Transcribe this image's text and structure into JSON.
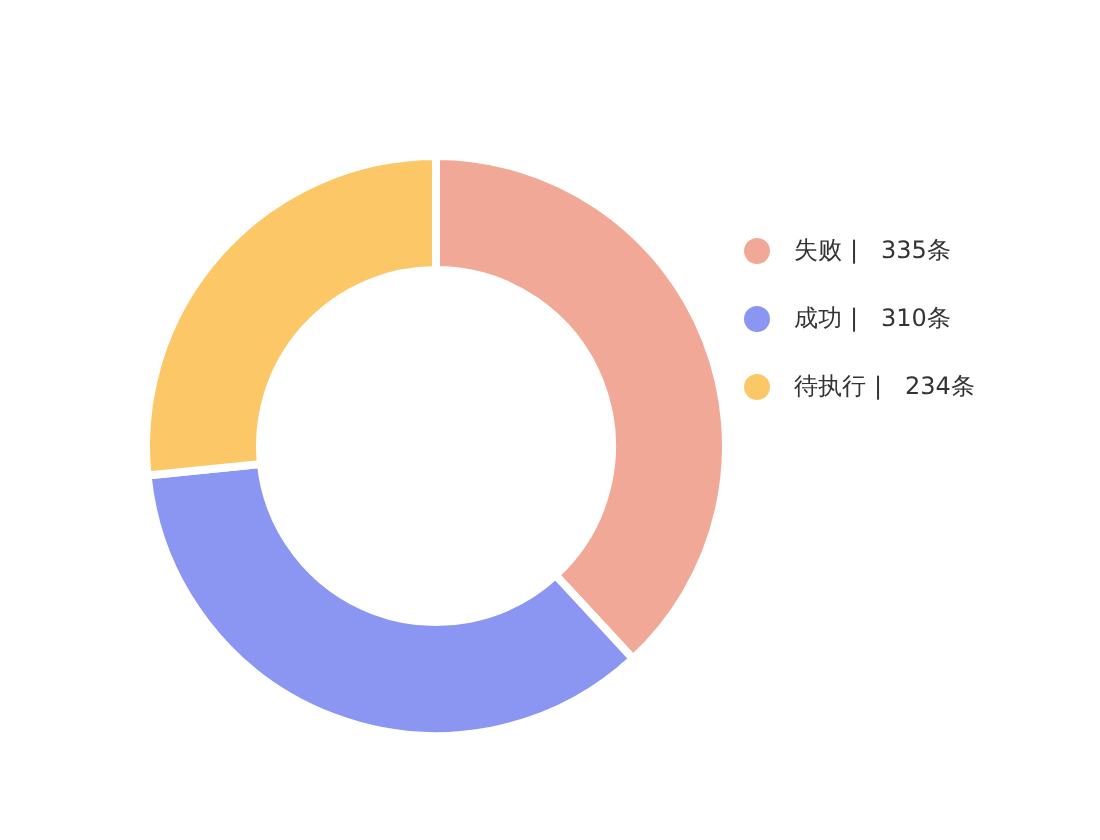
{
  "chart_data": {
    "type": "donut",
    "categories": [
      "失败",
      "成功",
      "待执行"
    ],
    "values": [
      335,
      310,
      234
    ],
    "colors": [
      "#f2a896",
      "#8a96f2",
      "#fcc767"
    ],
    "value_labels": [
      "|   335条",
      "|   310条",
      "|   234条"
    ],
    "legend": "top right"
  }
}
